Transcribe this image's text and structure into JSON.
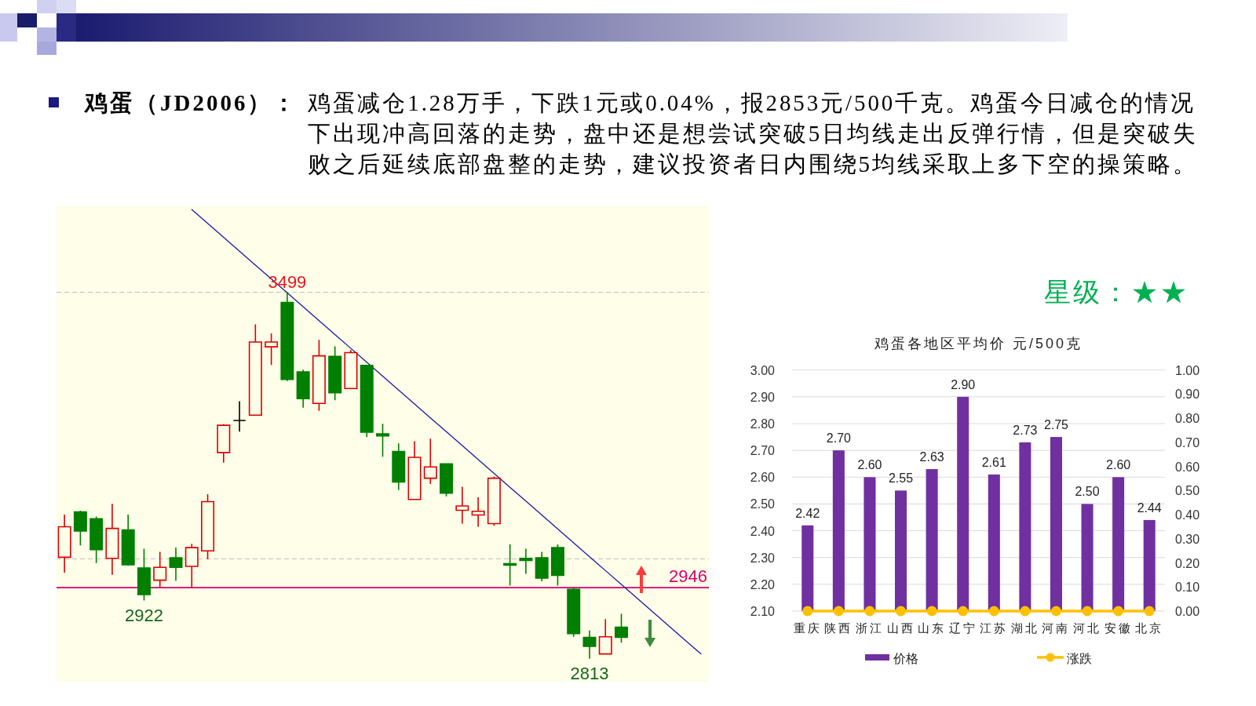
{
  "chart_data": [
    {
      "type": "candlestick",
      "title": "鸡蛋（JD2006）：",
      "subtitle": "鸡蛋减仓1.28万手，下跌1元或0.04%，报2853元/500千克。鸡蛋今日减仓的情况下出现冲高回落的走势，盘中还是想尝试突破5日均线走出反弹行情，但是突破失败之后延续底部盘整的走势，建议投资者日内围绕5均线采取上多下空的操策略。",
      "categories": [
        null,
        null,
        null,
        null,
        null,
        null,
        null,
        null,
        null,
        null,
        null,
        null,
        null,
        null,
        null,
        null,
        null,
        null,
        null,
        null,
        null,
        null,
        null,
        null,
        null,
        null,
        null,
        null,
        null,
        null,
        null,
        null,
        null,
        null,
        null,
        null,
        null,
        null,
        null,
        null,
        null
      ],
      "ohlc": [
        [
          3003,
          3083,
          2974,
          3060
        ],
        [
          3088,
          3090,
          3025,
          3052
        ],
        [
          3075,
          3079,
          2992,
          3017
        ],
        [
          3001,
          3103,
          2970,
          3057
        ],
        [
          3054,
          3083,
          2987,
          2989
        ],
        [
          2983,
          3019,
          2922,
          2933
        ],
        [
          2960,
          3013,
          2947,
          2984
        ],
        [
          3002,
          3021,
          2959,
          2984
        ],
        [
          2986,
          3028,
          2946,
          3021
        ],
        [
          3015,
          3121,
          2999,
          3107
        ],
        [
          3199,
          3252,
          3180,
          3250
        ],
        [
          3259,
          3295,
          3238,
          3259
        ],
        [
          3269,
          3439,
          3269,
          3406
        ],
        [
          3397,
          3422,
          3363,
          3406
        ],
        [
          3480,
          3499,
          3333,
          3336
        ],
        [
          3350,
          3354,
          3283,
          3300
        ],
        [
          3291,
          3410,
          3277,
          3380
        ],
        [
          3379,
          3398,
          3297,
          3311
        ],
        [
          3319,
          3391,
          3319,
          3386
        ],
        [
          3362,
          3363,
          3228,
          3237
        ],
        [
          3234,
          3253,
          3191,
          3230
        ],
        [
          3201,
          3216,
          3129,
          3144
        ],
        [
          3111,
          3220,
          3111,
          3190
        ],
        [
          3151,
          3225,
          3140,
          3172
        ],
        [
          3178,
          3178,
          3117,
          3123
        ],
        [
          3091,
          3135,
          3066,
          3099
        ],
        [
          3082,
          3115,
          3060,
          3089
        ],
        [
          3066,
          3154,
          3062,
          3151
        ],
        [
          2991,
          3027,
          2950,
          2988
        ],
        [
          3001,
          3019,
          2972,
          2997
        ],
        [
          3002,
          3013,
          2958,
          2964
        ],
        [
          3021,
          3027,
          2950,
          2969
        ],
        [
          2943,
          2945,
          2854,
          2860
        ],
        [
          2853,
          2866,
          2813,
          2836
        ],
        [
          2822,
          2887,
          2822,
          2854
        ],
        [
          2872,
          2897,
          2843,
          2853
        ],
        null,
        null,
        null,
        null,
        null
      ],
      "colors": [
        "#dd0000",
        "#007f00",
        "#007f00",
        "#dd0000",
        "#007f00",
        "#007f00",
        "#dd0000",
        "#007f00",
        "#dd0000",
        "#dd0000",
        "#dd0000",
        "#000000",
        "#dd0000",
        "#dd0000",
        "#007f00",
        "#007f00",
        "#dd0000",
        "#007f00",
        "#dd0000",
        "#007f00",
        "#007f00",
        "#007f00",
        "#dd0000",
        "#dd0000",
        "#007f00",
        "#dd0000",
        "#dd0000",
        "#dd0000",
        "#007f00",
        "#007f00",
        "#007f00",
        "#007f00",
        "#007f00",
        "#007f00",
        "#dd0000",
        "#007f00",
        null,
        null,
        null,
        null,
        null
      ],
      "ylim": [
        2770,
        3660
      ],
      "tick_labels": false,
      "series": [
        {
          "type": "line",
          "color": "#1a1aa8",
          "values": [
            null,
            null,
            null,
            null,
            null,
            null,
            null,
            null,
            3654,
            3628,
            3602,
            3576,
            3550,
            3524,
            3498,
            3472,
            3446,
            3420,
            3394,
            3368,
            3342,
            3316,
            3290,
            3264,
            3238,
            3212,
            3186,
            3160,
            3134,
            3108,
            3082,
            3056,
            3030,
            3004,
            2978,
            2952,
            2926,
            2900,
            2874,
            2848,
            2822
          ]
        }
      ],
      "ref_lines": [
        {
          "axis": "y",
          "value": 3499,
          "color": "#bdbdbd",
          "line_style": "dashed"
        },
        {
          "axis": "y",
          "value": 3000,
          "color": "#bdbdbd",
          "line_style": "dashed"
        },
        {
          "axis": "y",
          "value": 2946,
          "label": "2946",
          "color": "#d6006f"
        }
      ],
      "annotations": [
        {
          "text": "3499",
          "y": 3499
        },
        {
          "text": "2922",
          "y": 2922
        },
        {
          "text": "2813",
          "y": 2813
        }
      ]
    },
    {
      "type": "bar",
      "title": "鸡蛋各地区平均价 元/500克",
      "categories": [
        "重庆",
        "陕西",
        "浙江",
        "山西",
        "山东",
        "辽宁",
        "江苏",
        "湖北",
        "河南",
        "河北",
        "安徽",
        "北京"
      ],
      "series": [
        {
          "name": "价格",
          "color": "#7030a0",
          "values": [
            2.42,
            2.7,
            2.6,
            2.55,
            2.63,
            2.9,
            2.61,
            2.73,
            2.75,
            2.5,
            2.6,
            2.44
          ],
          "value_labels": [
            "2.42",
            "2.70",
            "2.60",
            "2.55",
            "2.63",
            "2.90",
            "2.61",
            "2.73",
            "2.75",
            "2.50",
            "2.60",
            "2.44"
          ]
        },
        {
          "name": "涨跌",
          "type": "line",
          "axis": "y2",
          "marker": "circle",
          "color": "#ffc000",
          "values": [
            0,
            0,
            0,
            0,
            0,
            0,
            0,
            0,
            0,
            0,
            0,
            0
          ]
        }
      ],
      "ylim": [
        2.1,
        3.0
      ],
      "yticks": [
        {
          "value": 2.1,
          "label": "2.10"
        },
        {
          "value": 2.2,
          "label": "2.20"
        },
        {
          "value": 2.3,
          "label": "2.30"
        },
        {
          "value": 2.4,
          "label": "2.40"
        },
        {
          "value": 2.5,
          "label": "2.50"
        },
        {
          "value": 2.6,
          "label": "2.60"
        },
        {
          "value": 2.7,
          "label": "2.70"
        },
        {
          "value": 2.8,
          "label": "2.80"
        },
        {
          "value": 2.9,
          "label": "2.90"
        },
        {
          "value": 3.0,
          "label": "3.00"
        }
      ],
      "y2lim": [
        0,
        1
      ],
      "y2ticks": [
        {
          "value": 0,
          "label": "0.00"
        },
        {
          "value": 0.1,
          "label": "0.10"
        },
        {
          "value": 0.2,
          "label": "0.20"
        },
        {
          "value": 0.3,
          "label": "0.30"
        },
        {
          "value": 0.4,
          "label": "0.40"
        },
        {
          "value": 0.5,
          "label": "0.50"
        },
        {
          "value": 0.6,
          "label": "0.60"
        },
        {
          "value": 0.7,
          "label": "0.70"
        },
        {
          "value": 0.8,
          "label": "0.80"
        },
        {
          "value": 0.9,
          "label": "0.90"
        },
        {
          "value": 1.0,
          "label": "1.00"
        }
      ],
      "grid": "y",
      "legend": "bottom",
      "annotations": [
        "星级：★★"
      ]
    }
  ]
}
